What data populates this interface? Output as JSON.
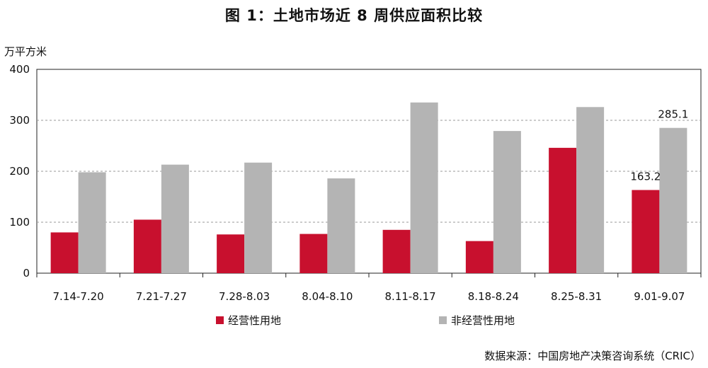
{
  "title": "图 1：土地市场近 8 周供应面积比较",
  "unit_label": "万平方米",
  "source": "数据来源：中国房地产决策咨询系统（CRIC）",
  "chart_data": {
    "type": "bar",
    "title": "图 1：土地市场近 8 周供应面积比较",
    "ylabel": "万平方米",
    "xlabel": "",
    "ylim": [
      0,
      400
    ],
    "yticks": [
      0,
      100,
      200,
      300,
      400
    ],
    "grid": "dashed horizontal",
    "legend_position": "bottom",
    "categories": [
      "7.14-7.20",
      "7.21-7.27",
      "7.28-8.03",
      "8.04-8.10",
      "8.11-8.17",
      "8.18-8.24",
      "8.25-8.31",
      "9.01-9.07"
    ],
    "series": [
      {
        "name": "经营性用地",
        "color": "#c8102e",
        "values": [
          80,
          105,
          76,
          77,
          85,
          63,
          246,
          163.2
        ]
      },
      {
        "name": "非经营性用地",
        "color": "#b4b4b4",
        "values": [
          198,
          213,
          217,
          186,
          335,
          279,
          326,
          285.1
        ]
      }
    ],
    "data_labels": [
      {
        "series": 0,
        "index": 7,
        "text": "163.2"
      },
      {
        "series": 1,
        "index": 7,
        "text": "285.1"
      }
    ]
  }
}
